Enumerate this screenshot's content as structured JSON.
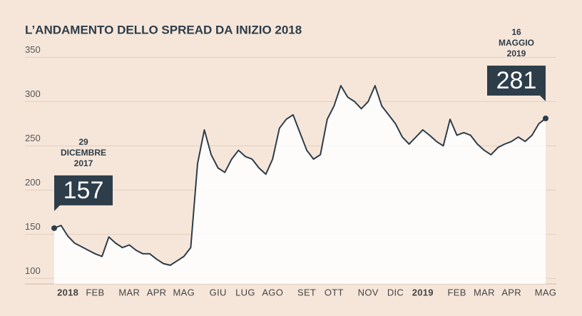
{
  "chart_data": {
    "type": "line",
    "title": "L’ANDAMENTO DELLO SPREAD DA INIZIO 2018",
    "categories": [
      null,
      null,
      "2018",
      null,
      null,
      null,
      "FEB",
      null,
      null,
      null,
      null,
      "MAR",
      null,
      null,
      null,
      "APR",
      null,
      null,
      null,
      "MAG",
      null,
      null,
      null,
      null,
      "GIU",
      null,
      null,
      null,
      "LUG",
      null,
      null,
      null,
      "AGO",
      null,
      null,
      null,
      null,
      "SET",
      null,
      null,
      null,
      "OTT",
      null,
      null,
      null,
      null,
      "NOV",
      null,
      null,
      null,
      "DIC",
      null,
      null,
      null,
      "2019",
      null,
      null,
      null,
      null,
      "FEB",
      null,
      null,
      null,
      "MAR",
      null,
      null,
      null,
      "APR",
      null,
      null,
      null,
      null,
      "MAG"
    ],
    "values": [
      157,
      160,
      148,
      140,
      136,
      132,
      128,
      125,
      147,
      140,
      135,
      138,
      132,
      128,
      128,
      122,
      117,
      115,
      120,
      125,
      135,
      230,
      268,
      240,
      225,
      220,
      235,
      245,
      238,
      235,
      225,
      218,
      235,
      270,
      280,
      285,
      265,
      245,
      235,
      240,
      280,
      295,
      318,
      305,
      300,
      292,
      300,
      318,
      295,
      285,
      275,
      260,
      252,
      260,
      268,
      262,
      255,
      250,
      280,
      262,
      265,
      262,
      252,
      245,
      240,
      248,
      252,
      255,
      260,
      255,
      262,
      275,
      281
    ],
    "color": "#2d3d4a",
    "ylim": [
      94,
      360
    ],
    "yticks": [
      100,
      150,
      200,
      250,
      300,
      350
    ],
    "grid": true,
    "annotations": [
      {
        "date_lines": [
          "29",
          "DICEMBRE",
          "2017"
        ],
        "value": 157
      },
      {
        "date_lines": [
          "16",
          "MAGGIO",
          "2019"
        ],
        "value": 281
      }
    ]
  }
}
